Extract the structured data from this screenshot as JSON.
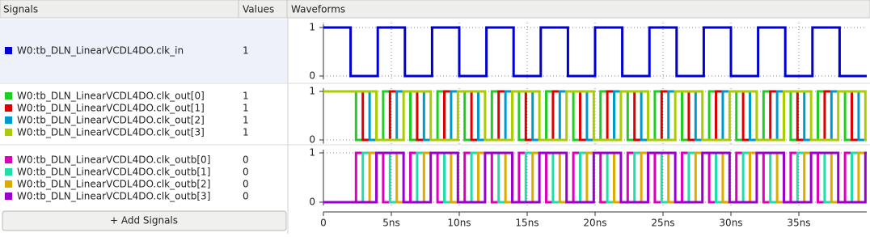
{
  "header": {
    "signals": "Signals",
    "values": "Values",
    "waveforms": "Waveforms"
  },
  "panels": [
    {
      "yticks": [
        0,
        1
      ],
      "signals": [
        {
          "name": "W0:tb_DLN_LinearVCDL4DO.clk_in",
          "value": 1,
          "color": "#0000d4",
          "initial": 1,
          "first_edge": 2,
          "half_period": 2
        }
      ]
    },
    {
      "yticks": [
        0,
        1
      ],
      "signals": [
        {
          "name": "W0:tb_DLN_LinearVCDL4DO.clk_out[0]",
          "value": 1,
          "color": "#22cc22",
          "initial": 1,
          "first_edge": 2.4,
          "half_period": 2
        },
        {
          "name": "W0:tb_DLN_LinearVCDL4DO.clk_out[1]",
          "value": 1,
          "color": "#dd0000",
          "initial": 1,
          "first_edge": 2.9,
          "half_period": 2
        },
        {
          "name": "W0:tb_DLN_LinearVCDL4DO.clk_out[2]",
          "value": 1,
          "color": "#0099cc",
          "initial": 1,
          "first_edge": 3.4,
          "half_period": 2
        },
        {
          "name": "W0:tb_DLN_LinearVCDL4DO.clk_out[3]",
          "value": 1,
          "color": "#aacc00",
          "initial": 1,
          "first_edge": 3.9,
          "half_period": 2
        }
      ]
    },
    {
      "yticks": [
        0,
        1
      ],
      "signals": [
        {
          "name": "W0:tb_DLN_LinearVCDL4DO.clk_outb[0]",
          "value": 0,
          "color": "#dd00bb",
          "initial": 0,
          "first_edge": 2.4,
          "half_period": 2
        },
        {
          "name": "W0:tb_DLN_LinearVCDL4DO.clk_outb[1]",
          "value": 0,
          "color": "#22ddaa",
          "initial": 0,
          "first_edge": 2.9,
          "half_period": 2
        },
        {
          "name": "W0:tb_DLN_LinearVCDL4DO.clk_outb[2]",
          "value": 0,
          "color": "#ddaa00",
          "initial": 0,
          "first_edge": 3.4,
          "half_period": 2
        },
        {
          "name": "W0:tb_DLN_LinearVCDL4DO.clk_outb[3]",
          "value": 0,
          "color": "#9900cc",
          "initial": 0,
          "first_edge": 3.9,
          "half_period": 2
        }
      ]
    }
  ],
  "add_button": "+ Add Signals",
  "time_axis": {
    "xlim": [
      0,
      40
    ],
    "xticks": [
      0,
      {
        "value": 5,
        "label": "5ns"
      },
      {
        "value": 10,
        "label": "10ns"
      },
      {
        "value": 15,
        "label": "15ns"
      },
      {
        "value": 20,
        "label": "20ns"
      },
      {
        "value": 25,
        "label": "25ns"
      },
      {
        "value": 30,
        "label": "30ns"
      },
      {
        "value": 35,
        "label": "35ns"
      }
    ]
  }
}
